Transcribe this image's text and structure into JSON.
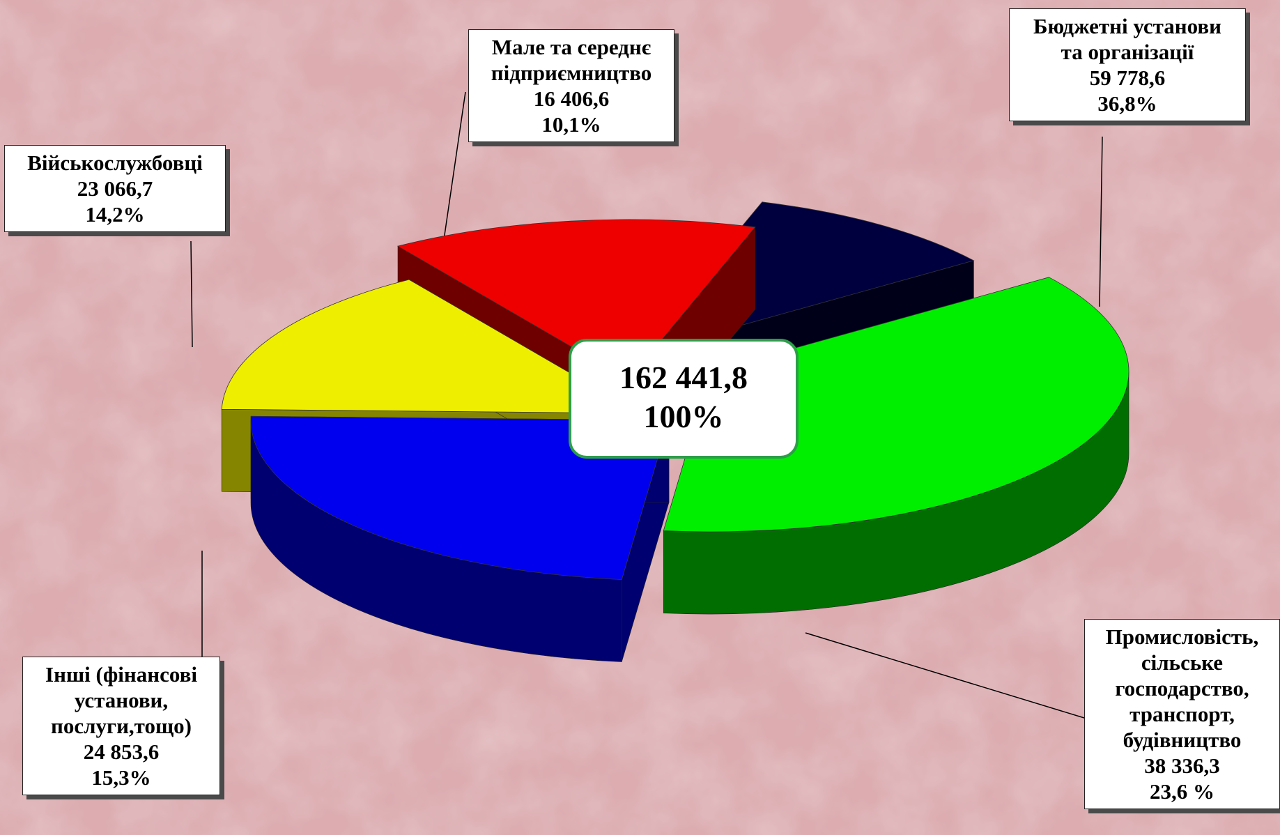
{
  "chart_data": {
    "type": "pie",
    "total": {
      "value": "162 441,8",
      "percent": "100%"
    },
    "slices": [
      {
        "name_lines": [
          "Бюджетні установи",
          "та організації"
        ],
        "value": 59778.6,
        "value_label": "59 778,6",
        "percent_label": "36,8%",
        "top_color": "#00ee00",
        "side_color": "#006e00"
      },
      {
        "name_lines": [
          "Промисловість,",
          "сільське",
          "господарство,",
          "транспорт,",
          "будівництво"
        ],
        "value": 38336.3,
        "value_label": "38 336,3",
        "percent_label": "23,6 %",
        "top_color": "#0000ee",
        "side_color": "#000070"
      },
      {
        "name_lines": [
          "Інші (фінансові",
          "установи,",
          "послуги,тощо)"
        ],
        "value": 24853.6,
        "value_label": "24 853,6",
        "percent_label": "15,3%",
        "top_color": "#eeee00",
        "side_color": "#858500"
      },
      {
        "name_lines": [
          "Військослужбовці"
        ],
        "value": 23066.7,
        "value_label": "23 066,7",
        "percent_label": "14,2%",
        "top_color": "#ee0000",
        "side_color": "#6e0000"
      },
      {
        "name_lines": [
          "Мале та середнє",
          "підприємництво"
        ],
        "value": 16406.6,
        "value_label": "16 406,6",
        "percent_label": "10,1%",
        "top_color": "#00003e",
        "side_color": "#000018"
      }
    ]
  }
}
